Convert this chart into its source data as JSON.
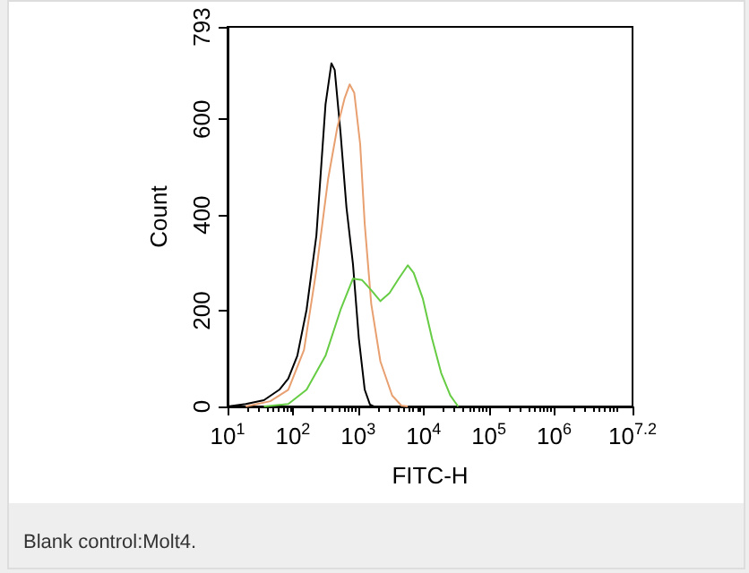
{
  "chart_data": {
    "type": "line",
    "xlabel": "FITC-H",
    "ylabel": "Count",
    "log": "x",
    "xlim": [
      10,
      15848932
    ],
    "ylim": [
      0,
      793
    ],
    "xticks": [
      {
        "value": 10,
        "label": "10$^{1}$"
      },
      {
        "value": 100,
        "label": "10$^{2}$"
      },
      {
        "value": 1000,
        "label": "10$^{3}$"
      },
      {
        "value": 10000,
        "label": "10$^{4}$"
      },
      {
        "value": 100000,
        "label": "10$^{5}$"
      },
      {
        "value": 1000000,
        "label": "10$^{6}$"
      },
      {
        "value": 15848932,
        "label": "10$^{7.2}$"
      }
    ],
    "yticks": [
      0,
      200,
      400,
      600,
      793
    ],
    "grid": false,
    "marker": "none",
    "line_style": "solid",
    "annotations": [
      "Blank control:Molt4."
    ],
    "series": [
      {
        "color": "#000000",
        "x": [
          10,
          19,
          36,
          62,
          85,
          117,
          162,
          229,
          316,
          389,
          437,
          537,
          661,
          832,
          1023,
          1259,
          1514,
          1738
        ],
        "values": [
          0,
          5,
          13,
          35,
          58,
          106,
          202,
          357,
          631,
          717,
          703,
          571,
          416,
          297,
          142,
          35,
          4,
          0
        ]
      },
      {
        "color": "#e8a070",
        "x": [
          19,
          45,
          85,
          148,
          229,
          347,
          479,
          617,
          741,
          871,
          1072,
          1259,
          1585,
          2188,
          3311,
          4571,
          5754
        ],
        "values": [
          0,
          11,
          35,
          118,
          285,
          476,
          583,
          643,
          673,
          655,
          548,
          381,
          214,
          94,
          23,
          2,
          0
        ]
      },
      {
        "color": "#66cc44",
        "x": [
          36,
          85,
          162,
          316,
          537,
          832,
          1148,
          1585,
          2188,
          3020,
          4169,
          5754,
          7079,
          9772,
          13490,
          18620,
          25700,
          33880
        ],
        "values": [
          0,
          5,
          35,
          106,
          202,
          267,
          264,
          243,
          220,
          237,
          267,
          295,
          279,
          225,
          142,
          70,
          23,
          0
        ]
      }
    ]
  }
}
